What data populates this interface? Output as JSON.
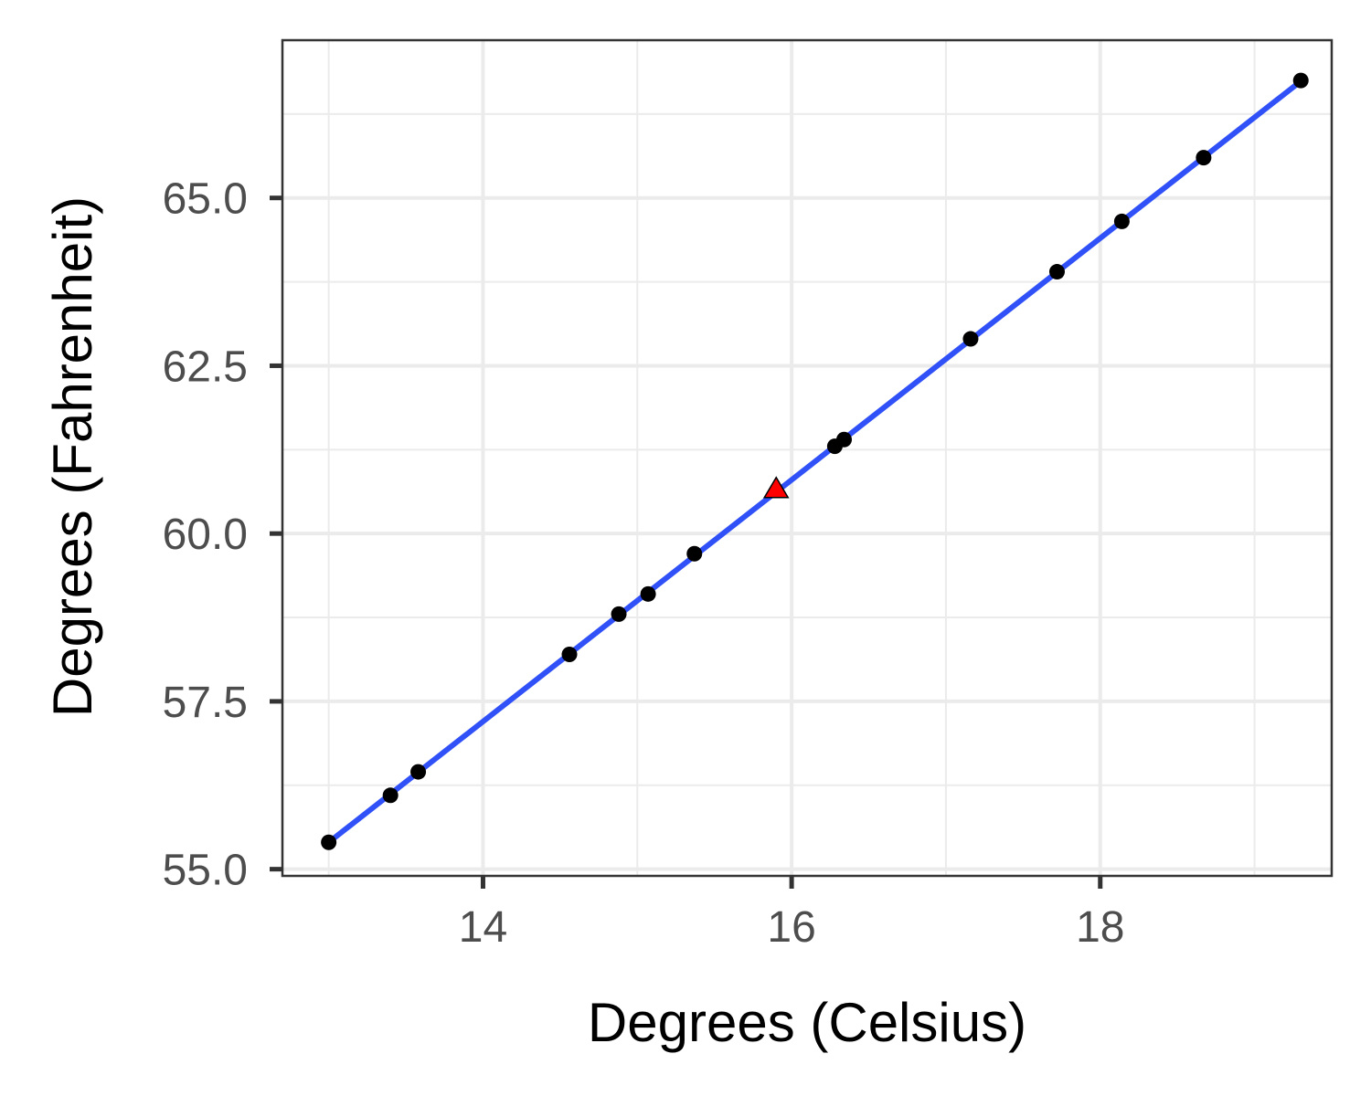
{
  "chart_data": {
    "type": "scatter",
    "xlabel": "Degrees (Celsius)",
    "ylabel": "Degrees (Fahrenheit)",
    "xlim": [
      12.7,
      19.5
    ],
    "ylim": [
      54.9,
      67.35
    ],
    "x_ticks": [
      14,
      16,
      18
    ],
    "x_tick_labels": [
      "14",
      "16",
      "18"
    ],
    "x_minor_ticks": [
      13,
      15,
      17,
      19
    ],
    "y_ticks": [
      55.0,
      57.5,
      60.0,
      62.5,
      65.0
    ],
    "y_tick_labels": [
      "55.0",
      "57.5",
      "60.0",
      "62.5",
      "65.0"
    ],
    "y_minor_ticks": [
      56.25,
      58.75,
      61.25,
      63.75,
      66.25
    ],
    "grid": true,
    "legend": "none",
    "colors": {
      "points": "#000000",
      "fit_line": "#3050f8",
      "highlight": "#ff0000",
      "grid": "#ebebeb",
      "panel_border": "#333333"
    },
    "series": [
      {
        "kind": "points",
        "marker": "circle",
        "x": [
          13.0,
          13.4,
          13.58,
          14.56,
          14.88,
          15.07,
          15.37,
          16.28,
          16.34,
          17.16,
          17.72,
          18.14,
          18.67,
          19.3
        ],
        "y": [
          55.4,
          56.1,
          56.45,
          58.2,
          58.8,
          59.1,
          59.7,
          61.3,
          61.4,
          62.9,
          63.9,
          64.65,
          65.6,
          66.75
        ]
      },
      {
        "kind": "line",
        "x": [
          13.0,
          19.3
        ],
        "y": [
          55.4,
          66.74
        ]
      },
      {
        "kind": "highlight",
        "marker": "triangle",
        "x": [
          15.9
        ],
        "y": [
          60.65
        ]
      }
    ]
  }
}
